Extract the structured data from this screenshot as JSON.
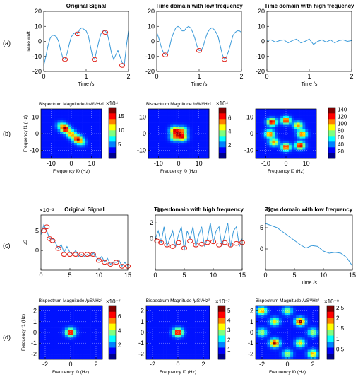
{
  "figure": {
    "row_labels": [
      "(a)",
      "(b)",
      "(c)",
      "(d)"
    ],
    "colorbar_colors": [
      "#00008f",
      "#0000ff",
      "#0080ff",
      "#00ffff",
      "#80ff80",
      "#ffff00",
      "#ff8000",
      "#ff0000",
      "#800000"
    ]
  },
  "chart_data": [
    {
      "id": "a1",
      "type": "line",
      "title": "Original Signal",
      "xlabel": "Time /s",
      "ylabel": "nano watt",
      "xlim": [
        0,
        2
      ],
      "ylim": [
        -20,
        20
      ],
      "xticks": [
        "0",
        "1",
        "2"
      ],
      "yticks": [
        "-20",
        "-10",
        "0",
        "10",
        "20"
      ],
      "series": [
        {
          "x": [
            0,
            0.05,
            0.1,
            0.15,
            0.2,
            0.25,
            0.3,
            0.35,
            0.4,
            0.45,
            0.5,
            0.55,
            0.6,
            0.65,
            0.7,
            0.75,
            0.8,
            0.85,
            0.9,
            0.95,
            1.0,
            1.05,
            1.1,
            1.15,
            1.2,
            1.25,
            1.3,
            1.35,
            1.4,
            1.45,
            1.5,
            1.55,
            1.6,
            1.65,
            1.7,
            1.75,
            1.8,
            1.85,
            1.9,
            1.95,
            2.0
          ],
          "y": [
            -16,
            -10,
            -3,
            2,
            4,
            4,
            3,
            0,
            -6,
            -11,
            -12,
            -8,
            -2,
            3,
            5,
            6,
            5,
            8,
            9,
            8,
            7,
            4,
            -3,
            -10,
            -12,
            -6,
            0,
            5,
            7,
            7,
            5,
            -1,
            -8,
            -12,
            -9,
            -6,
            -10,
            -14,
            -16,
            -3,
            7
          ]
        }
      ],
      "markers": [
        {
          "x": 0.5,
          "y": -12
        },
        {
          "x": 0.8,
          "y": 5
        },
        {
          "x": 1.2,
          "y": -12
        },
        {
          "x": 1.45,
          "y": 6
        },
        {
          "x": 1.85,
          "y": -16
        }
      ]
    },
    {
      "id": "a2",
      "type": "line",
      "title": "Time domain with low frequency",
      "xlabel": "Time /s",
      "ylabel": "",
      "xlim": [
        0,
        2
      ],
      "ylim": [
        -20,
        20
      ],
      "xticks": [
        "0",
        "1",
        "2"
      ],
      "yticks": [
        "-20",
        "-10",
        "0",
        "10",
        "20"
      ],
      "series": [
        {
          "x": [
            0,
            0.05,
            0.1,
            0.15,
            0.2,
            0.25,
            0.3,
            0.35,
            0.4,
            0.45,
            0.5,
            0.55,
            0.6,
            0.65,
            0.7,
            0.75,
            0.8,
            0.85,
            0.9,
            0.95,
            1.0,
            1.05,
            1.1,
            1.15,
            1.2,
            1.25,
            1.3,
            1.35,
            1.4,
            1.45,
            1.5,
            1.55,
            1.6,
            1.65,
            1.7,
            1.75,
            1.8,
            1.85,
            1.9,
            1.95,
            2.0
          ],
          "y": [
            6,
            2,
            -3,
            -7,
            -9,
            -8,
            -4,
            2,
            6,
            9,
            10,
            9,
            7,
            7,
            9,
            10,
            9,
            6,
            2,
            -3,
            -6,
            -6,
            -3,
            2,
            6,
            8,
            9,
            8,
            6,
            3,
            -3,
            -9,
            -12,
            -10,
            -6,
            -1,
            4,
            6,
            7,
            7,
            6
          ]
        }
      ],
      "markers": [
        {
          "x": 0.2,
          "y": -9
        },
        {
          "x": 1.0,
          "y": -6
        },
        {
          "x": 1.6,
          "y": -12
        }
      ]
    },
    {
      "id": "a3",
      "type": "line",
      "title": "Time domain with high frequency",
      "xlabel": "Time /s",
      "ylabel": "",
      "xlim": [
        0,
        2
      ],
      "ylim": [
        -20,
        20
      ],
      "xticks": [
        "0",
        "1",
        "2"
      ],
      "yticks": [
        "-20",
        "-10",
        "0",
        "10",
        "20"
      ],
      "series": [
        {
          "x": [
            0,
            0.1,
            0.2,
            0.3,
            0.4,
            0.5,
            0.6,
            0.7,
            0.8,
            0.9,
            1.0,
            1.1,
            1.2,
            1.3,
            1.4,
            1.5,
            1.6,
            1.7,
            1.8,
            1.9,
            2.0
          ],
          "y": [
            0.5,
            1,
            -0.5,
            0.5,
            1,
            -1,
            0.5,
            1.5,
            -1,
            0,
            1.5,
            -2,
            0,
            1,
            -0.5,
            1,
            -1,
            0.5,
            1,
            0,
            0.5
          ]
        }
      ],
      "markers": []
    },
    {
      "id": "b1",
      "type": "heatmap",
      "title": "Bispectrum Magnitude /nW³/Hz²",
      "xlabel": "Frequency f0 (Hz)",
      "ylabel": "Frequency f1 (Hz)",
      "xlim": [
        -15,
        15
      ],
      "ylim": [
        -15,
        15
      ],
      "xticks": [
        "-10",
        "0",
        "10"
      ],
      "yticks": [
        "-10",
        "0",
        "10"
      ],
      "colorbar": {
        "multiplier": "×10⁴",
        "ticks": [
          "5",
          "10",
          "15"
        ],
        "range": [
          0,
          18
        ]
      },
      "peaks": [
        {
          "x": -3,
          "y": 3,
          "v": 1
        },
        {
          "x": 3,
          "y": -3,
          "v": 0.9
        },
        {
          "x": 0,
          "y": 0,
          "v": 0.7
        },
        {
          "x": -5,
          "y": 5,
          "v": 0.4
        },
        {
          "x": 5,
          "y": -5,
          "v": 0.4
        }
      ]
    },
    {
      "id": "b2",
      "type": "heatmap",
      "title": "Bispectrum Magnitude /nW³/Hz²",
      "xlabel": "Frequency f0 (Hz)",
      "ylabel": "",
      "xlim": [
        -15,
        15
      ],
      "ylim": [
        -15,
        15
      ],
      "xticks": [
        "-10",
        "0",
        "10"
      ],
      "yticks": [
        "-10",
        "0",
        "10"
      ],
      "colorbar": {
        "multiplier": "×10⁴",
        "ticks": [
          "2",
          "4",
          "6"
        ],
        "range": [
          0,
          7.5
        ]
      },
      "peaks": [
        {
          "x": -2,
          "y": 2,
          "v": 0.8
        },
        {
          "x": 2,
          "y": -2,
          "v": 0.8
        },
        {
          "x": 2,
          "y": 2,
          "v": 0.6
        },
        {
          "x": -2,
          "y": -2,
          "v": 0.6
        },
        {
          "x": 0,
          "y": 0,
          "v": 0.5
        }
      ]
    },
    {
      "id": "b3",
      "type": "heatmap",
      "title": "",
      "xlabel": "Frequency f0 (Hz)",
      "ylabel": "",
      "xlim": [
        -15,
        15
      ],
      "ylim": [
        -15,
        15
      ],
      "xticks": [
        "-10",
        "0",
        "10"
      ],
      "yticks": [
        "-10",
        "0",
        "10"
      ],
      "colorbar": {
        "multiplier": "",
        "ticks": [
          "20",
          "40",
          "60",
          "80",
          "100",
          "120",
          "140"
        ],
        "range": [
          0,
          145
        ]
      },
      "peaks": [
        {
          "x": -7,
          "y": 7,
          "v": 1
        },
        {
          "x": 7,
          "y": -7,
          "v": 1
        },
        {
          "x": 0,
          "y": 8,
          "v": 0.9
        },
        {
          "x": 0,
          "y": -8,
          "v": 0.9
        },
        {
          "x": -8,
          "y": 0,
          "v": 0.8
        },
        {
          "x": 8,
          "y": 0,
          "v": 0.8
        },
        {
          "x": -6,
          "y": -5,
          "v": 0.7
        },
        {
          "x": 6,
          "y": 5,
          "v": 0.7
        }
      ]
    },
    {
      "id": "c1",
      "type": "line",
      "title": "Original Signal",
      "xlabel": "",
      "ylabel": "μS",
      "xlim": [
        0,
        15
      ],
      "ylim": [
        -5,
        9
      ],
      "multiplier": "×10⁻³",
      "xticks": [
        "0",
        "5",
        "10",
        "15"
      ],
      "yticks": [
        "0",
        "5"
      ],
      "series": [
        {
          "x": [
            0,
            0.5,
            1,
            1.5,
            2,
            2.5,
            3,
            3.5,
            4,
            4.5,
            5,
            5.5,
            6,
            6.5,
            7,
            7.5,
            8,
            8.5,
            9,
            9.5,
            10,
            10.5,
            11,
            11.5,
            12,
            12.5,
            13,
            13.5,
            14,
            14.5,
            15
          ],
          "y": [
            4,
            6.5,
            5,
            3,
            3,
            2,
            0.5,
            1.5,
            -0.5,
            1,
            -0.5,
            -1,
            0,
            -1.5,
            -1,
            -1.5,
            -1,
            -1.5,
            -0.5,
            -1.5,
            -2.5,
            -1.5,
            -3,
            -2,
            -3.5,
            -3,
            -3,
            -2.5,
            -4,
            -3,
            -4
          ]
        }
      ],
      "markers": [
        {
          "x": 0.5,
          "y": 5
        },
        {
          "x": 1,
          "y": 6
        },
        {
          "x": 1.5,
          "y": 3
        },
        {
          "x": 2,
          "y": 2.5
        },
        {
          "x": 3,
          "y": 0.5
        },
        {
          "x": 4,
          "y": -1
        },
        {
          "x": 5,
          "y": -1
        },
        {
          "x": 6,
          "y": -1
        },
        {
          "x": 7,
          "y": -1
        },
        {
          "x": 8,
          "y": -1
        },
        {
          "x": 9,
          "y": -1
        },
        {
          "x": 10,
          "y": -2.5
        },
        {
          "x": 11,
          "y": -3
        },
        {
          "x": 12,
          "y": -3.5
        },
        {
          "x": 13,
          "y": -3
        },
        {
          "x": 14,
          "y": -4
        },
        {
          "x": 15,
          "y": -4
        }
      ]
    },
    {
      "id": "c2",
      "type": "line",
      "title": "Time domain with high frequency",
      "xlabel": "",
      "ylabel": "",
      "xlim": [
        0,
        15
      ],
      "ylim": [
        -4,
        3
      ],
      "multiplier": "×10⁻³",
      "xticks": [
        "0",
        "5",
        "10",
        "15"
      ],
      "yticks": [
        "0",
        "2"
      ],
      "series": [
        {
          "x": [
            0,
            0.5,
            1,
            1.5,
            2,
            2.5,
            3,
            3.5,
            4,
            4.5,
            5,
            5.5,
            6,
            6.5,
            7,
            7.5,
            8,
            8.5,
            9,
            9.5,
            10,
            10.5,
            11,
            11.5,
            12,
            12.5,
            13,
            13.5,
            14,
            14.5,
            15
          ],
          "y": [
            0,
            1,
            -0.5,
            1.5,
            -1,
            0,
            1,
            -1,
            0.5,
            1.5,
            -1.5,
            1,
            0,
            1.5,
            -1,
            0.5,
            1.5,
            -1,
            0,
            2,
            -0.5,
            1,
            1.5,
            -1,
            0.5,
            2,
            -1,
            1,
            1.5,
            -1,
            0
          ]
        }
      ],
      "markers": [
        {
          "x": 0.3,
          "y": -0.3
        },
        {
          "x": 1,
          "y": -0.5
        },
        {
          "x": 2,
          "y": -0.8
        },
        {
          "x": 3,
          "y": -1
        },
        {
          "x": 4,
          "y": -0.5
        },
        {
          "x": 5,
          "y": -1.2
        },
        {
          "x": 6,
          "y": -0.3
        },
        {
          "x": 7,
          "y": -0.8
        },
        {
          "x": 8,
          "y": -0.7
        },
        {
          "x": 9,
          "y": -0.5
        },
        {
          "x": 10,
          "y": -0.4
        },
        {
          "x": 11,
          "y": -0.8
        },
        {
          "x": 12,
          "y": -0.5
        },
        {
          "x": 13,
          "y": -0.8
        },
        {
          "x": 14,
          "y": -0.6
        },
        {
          "x": 15,
          "y": -0.5
        }
      ]
    },
    {
      "id": "c3",
      "type": "line",
      "title": "Time domain with low frequency",
      "xlabel": "Time /s",
      "ylabel": "",
      "xlim": [
        0,
        15
      ],
      "ylim": [
        -5,
        8
      ],
      "multiplier": "×10⁻³",
      "xticks": [
        "0",
        "5",
        "10",
        "15"
      ],
      "yticks": [
        "0",
        "5"
      ],
      "series": [
        {
          "x": [
            0,
            1,
            2,
            3,
            4,
            5,
            6,
            7,
            8,
            9,
            10,
            11,
            12,
            13,
            14,
            15
          ],
          "y": [
            6,
            5.5,
            5,
            4,
            3,
            2,
            1,
            0.2,
            0.8,
            0.6,
            -0.5,
            -1,
            -0.8,
            -1,
            -2,
            -4
          ]
        }
      ],
      "markers": []
    },
    {
      "id": "d1",
      "type": "heatmap",
      "title": "Bispectrum Magnitude /μS³/Hz²",
      "xlabel": "Frequency f0 (Hz)",
      "ylabel": "Frequency f1 (Hz)",
      "xlim": [
        -2.5,
        2.5
      ],
      "ylim": [
        -2.5,
        2.5
      ],
      "xticks": [
        "-2",
        "0",
        "2"
      ],
      "yticks": [
        "-2",
        "-1",
        "0",
        "1",
        "2"
      ],
      "colorbar": {
        "multiplier": "×10⁻⁷",
        "ticks": [
          "2",
          "4",
          "6"
        ],
        "range": [
          0,
          7.5
        ]
      },
      "peaks": [
        {
          "x": 0,
          "y": 0,
          "v": 1
        }
      ]
    },
    {
      "id": "d2",
      "type": "heatmap",
      "title": "Bispectrum Magnitude /μS³/Hz²",
      "xlabel": "Frequency f0 (Hz)",
      "ylabel": "",
      "xlim": [
        -2.5,
        2.5
      ],
      "ylim": [
        -2.5,
        2.5
      ],
      "xticks": [
        "-2",
        "0",
        "2"
      ],
      "yticks": [
        "-2",
        "-1",
        "0",
        "1",
        "2"
      ],
      "colorbar": {
        "multiplier": "×10⁻⁷",
        "ticks": [
          "1",
          "2",
          "3",
          "4",
          "5"
        ],
        "range": [
          0,
          5.5
        ]
      },
      "peaks": [
        {
          "x": 0,
          "y": 0,
          "v": 1
        }
      ]
    },
    {
      "id": "d3",
      "type": "heatmap",
      "title": "Bispectrum Magnitude /μS³/Hz²",
      "xlabel": "Frequency f0 (Hz)",
      "ylabel": "",
      "xlim": [
        -2.5,
        2.5
      ],
      "ylim": [
        -2.5,
        2.5
      ],
      "xticks": [
        "-2",
        "0",
        "2"
      ],
      "yticks": [
        "-2",
        "-1",
        "0",
        "1",
        "2"
      ],
      "colorbar": {
        "multiplier": "×10⁻⁹",
        "ticks": [
          "0.5",
          "1",
          "1.5",
          "2",
          "2.5"
        ],
        "range": [
          0,
          2.6
        ]
      },
      "peaks": [
        {
          "x": -1,
          "y": -1,
          "v": 1
        },
        {
          "x": 1,
          "y": 1,
          "v": 1
        },
        {
          "x": 1,
          "y": -1,
          "v": 0.6
        },
        {
          "x": -1,
          "y": 1,
          "v": 0.6
        },
        {
          "x": -2,
          "y": 2,
          "v": 0.7
        },
        {
          "x": 2,
          "y": -2,
          "v": 0.7
        },
        {
          "x": 0,
          "y": 2,
          "v": 0.5
        },
        {
          "x": 2,
          "y": 0,
          "v": 0.5
        },
        {
          "x": -2,
          "y": 0,
          "v": 0.5
        },
        {
          "x": 0,
          "y": -2,
          "v": 0.5
        }
      ]
    }
  ]
}
